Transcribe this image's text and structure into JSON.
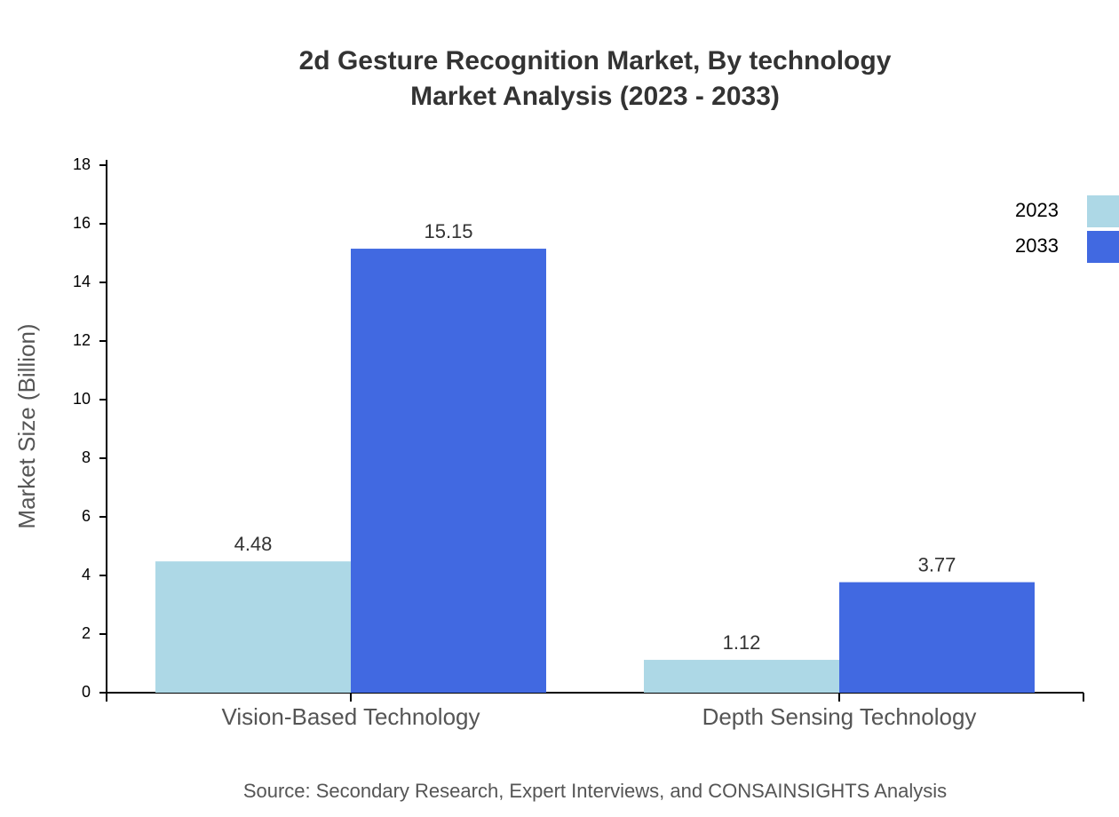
{
  "chart_data": {
    "type": "bar",
    "title": "2d Gesture Recognition Market, By technology",
    "subtitle": "Market Analysis (2023 - 2033)",
    "y_label": "Market Size (Billion)",
    "source": "Source: Secondary Research, Expert Interviews, and CONSAINSIGHTS Analysis",
    "categories": [
      "Vision-Based Technology",
      "Depth Sensing Technology"
    ],
    "series": [
      {
        "name": "2023",
        "color": "#add8e6",
        "values": [
          4.48,
          1.12
        ]
      },
      {
        "name": "2033",
        "color": "#4169e1",
        "values": [
          15.15,
          3.77
        ]
      }
    ],
    "ylim": [
      0,
      18
    ],
    "yticks": [
      0,
      2,
      4,
      6,
      8,
      10,
      12,
      14,
      16,
      18
    ],
    "grid": false,
    "legend": "top-right"
  }
}
